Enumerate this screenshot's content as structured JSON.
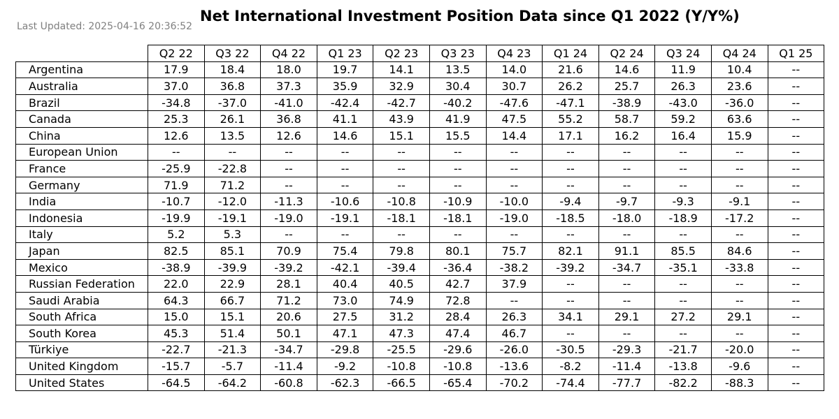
{
  "last_updated": "Last Updated: 2025-04-16 20:36:52",
  "chart_data": {
    "type": "table",
    "title": "Net International Investment Position Data since Q1 2022 (Y/Y%)",
    "columns": [
      "Q2 22",
      "Q3 22",
      "Q4 22",
      "Q1 23",
      "Q2 23",
      "Q3 23",
      "Q4 23",
      "Q1 24",
      "Q2 24",
      "Q3 24",
      "Q4 24",
      "Q1 25"
    ],
    "rows": [
      {
        "label": "Argentina",
        "values": [
          "17.9",
          "18.4",
          "18.0",
          "19.7",
          "14.1",
          "13.5",
          "14.0",
          "21.6",
          "14.6",
          "11.9",
          "10.4",
          "--"
        ]
      },
      {
        "label": "Australia",
        "values": [
          "37.0",
          "36.8",
          "37.3",
          "35.9",
          "32.9",
          "30.4",
          "30.7",
          "26.2",
          "25.7",
          "26.3",
          "23.6",
          "--"
        ]
      },
      {
        "label": "Brazil",
        "values": [
          "-34.8",
          "-37.0",
          "-41.0",
          "-42.4",
          "-42.7",
          "-40.2",
          "-47.6",
          "-47.1",
          "-38.9",
          "-43.0",
          "-36.0",
          "--"
        ]
      },
      {
        "label": "Canada",
        "values": [
          "25.3",
          "26.1",
          "36.8",
          "41.1",
          "43.9",
          "41.9",
          "47.5",
          "55.2",
          "58.7",
          "59.2",
          "63.6",
          "--"
        ]
      },
      {
        "label": "China",
        "values": [
          "12.6",
          "13.5",
          "12.6",
          "14.6",
          "15.1",
          "15.5",
          "14.4",
          "17.1",
          "16.2",
          "16.4",
          "15.9",
          "--"
        ]
      },
      {
        "label": "European Union",
        "values": [
          "--",
          "--",
          "--",
          "--",
          "--",
          "--",
          "--",
          "--",
          "--",
          "--",
          "--",
          "--"
        ]
      },
      {
        "label": "France",
        "values": [
          "-25.9",
          "-22.8",
          "--",
          "--",
          "--",
          "--",
          "--",
          "--",
          "--",
          "--",
          "--",
          "--"
        ]
      },
      {
        "label": "Germany",
        "values": [
          "71.9",
          "71.2",
          "--",
          "--",
          "--",
          "--",
          "--",
          "--",
          "--",
          "--",
          "--",
          "--"
        ]
      },
      {
        "label": "India",
        "values": [
          "-10.7",
          "-12.0",
          "-11.3",
          "-10.6",
          "-10.8",
          "-10.9",
          "-10.0",
          "-9.4",
          "-9.7",
          "-9.3",
          "-9.1",
          "--"
        ]
      },
      {
        "label": "Indonesia",
        "values": [
          "-19.9",
          "-19.1",
          "-19.0",
          "-19.1",
          "-18.1",
          "-18.1",
          "-19.0",
          "-18.5",
          "-18.0",
          "-18.9",
          "-17.2",
          "--"
        ]
      },
      {
        "label": "Italy",
        "values": [
          "5.2",
          "5.3",
          "--",
          "--",
          "--",
          "--",
          "--",
          "--",
          "--",
          "--",
          "--",
          "--"
        ]
      },
      {
        "label": "Japan",
        "values": [
          "82.5",
          "85.1",
          "70.9",
          "75.4",
          "79.8",
          "80.1",
          "75.7",
          "82.1",
          "91.1",
          "85.5",
          "84.6",
          "--"
        ]
      },
      {
        "label": "Mexico",
        "values": [
          "-38.9",
          "-39.9",
          "-39.2",
          "-42.1",
          "-39.4",
          "-36.4",
          "-38.2",
          "-39.2",
          "-34.7",
          "-35.1",
          "-33.8",
          "--"
        ]
      },
      {
        "label": "Russian Federation",
        "values": [
          "22.0",
          "22.9",
          "28.1",
          "40.4",
          "40.5",
          "42.7",
          "37.9",
          "--",
          "--",
          "--",
          "--",
          "--"
        ]
      },
      {
        "label": "Saudi Arabia",
        "values": [
          "64.3",
          "66.7",
          "71.2",
          "73.0",
          "74.9",
          "72.8",
          "--",
          "--",
          "--",
          "--",
          "--",
          "--"
        ]
      },
      {
        "label": "South Africa",
        "values": [
          "15.0",
          "15.1",
          "20.6",
          "27.5",
          "31.2",
          "28.4",
          "26.3",
          "34.1",
          "29.1",
          "27.2",
          "29.1",
          "--"
        ]
      },
      {
        "label": "South Korea",
        "values": [
          "45.3",
          "51.4",
          "50.1",
          "47.1",
          "47.3",
          "47.4",
          "46.7",
          "--",
          "--",
          "--",
          "--",
          "--"
        ]
      },
      {
        "label": "Türkiye",
        "values": [
          "-22.7",
          "-21.3",
          "-34.7",
          "-29.8",
          "-25.5",
          "-29.6",
          "-26.0",
          "-30.5",
          "-29.3",
          "-21.7",
          "-20.0",
          "--"
        ]
      },
      {
        "label": "United Kingdom",
        "values": [
          "-15.7",
          "-5.7",
          "-11.4",
          "-9.2",
          "-10.8",
          "-10.8",
          "-13.6",
          "-8.2",
          "-11.4",
          "-13.8",
          "-9.6",
          "--"
        ]
      },
      {
        "label": "United States",
        "values": [
          "-64.5",
          "-64.2",
          "-60.8",
          "-62.3",
          "-66.5",
          "-65.4",
          "-70.2",
          "-74.4",
          "-77.7",
          "-82.2",
          "-88.3",
          "--"
        ]
      }
    ]
  }
}
